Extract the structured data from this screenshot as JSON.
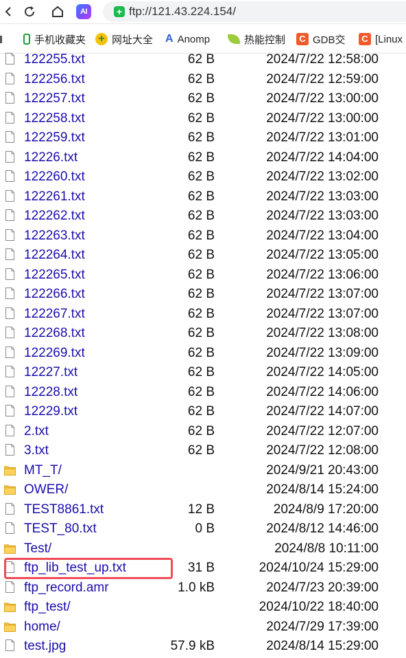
{
  "browser": {
    "ai_label": "AI",
    "address_url": "ftp://121.43.224.154/"
  },
  "bookmarks": [
    {
      "label": "手机收藏夹",
      "icon": "phone-icon"
    },
    {
      "label": "网址大全",
      "icon": "globe-icon"
    },
    {
      "label": "Anomp",
      "icon": "a-logo-icon"
    },
    {
      "label": "热能控制",
      "icon": "leaf-icon"
    },
    {
      "label": "GDB交",
      "icon": "c-logo-icon"
    },
    {
      "label": "[Linux",
      "icon": "c-logo-icon"
    }
  ],
  "files": [
    {
      "name": "122255.txt",
      "size": "62 B",
      "date": "2024/7/22 12:58:00",
      "type": "file"
    },
    {
      "name": "122256.txt",
      "size": "62 B",
      "date": "2024/7/22 12:59:00",
      "type": "file"
    },
    {
      "name": "122257.txt",
      "size": "62 B",
      "date": "2024/7/22 13:00:00",
      "type": "file"
    },
    {
      "name": "122258.txt",
      "size": "62 B",
      "date": "2024/7/22 13:00:00",
      "type": "file"
    },
    {
      "name": "122259.txt",
      "size": "62 B",
      "date": "2024/7/22 13:01:00",
      "type": "file"
    },
    {
      "name": "12226.txt",
      "size": "62 B",
      "date": "2024/7/22 14:04:00",
      "type": "file"
    },
    {
      "name": "122260.txt",
      "size": "62 B",
      "date": "2024/7/22 13:02:00",
      "type": "file"
    },
    {
      "name": "122261.txt",
      "size": "62 B",
      "date": "2024/7/22 13:03:00",
      "type": "file"
    },
    {
      "name": "122262.txt",
      "size": "62 B",
      "date": "2024/7/22 13:03:00",
      "type": "file"
    },
    {
      "name": "122263.txt",
      "size": "62 B",
      "date": "2024/7/22 13:04:00",
      "type": "file"
    },
    {
      "name": "122264.txt",
      "size": "62 B",
      "date": "2024/7/22 13:05:00",
      "type": "file"
    },
    {
      "name": "122265.txt",
      "size": "62 B",
      "date": "2024/7/22 13:06:00",
      "type": "file"
    },
    {
      "name": "122266.txt",
      "size": "62 B",
      "date": "2024/7/22 13:07:00",
      "type": "file"
    },
    {
      "name": "122267.txt",
      "size": "62 B",
      "date": "2024/7/22 13:07:00",
      "type": "file"
    },
    {
      "name": "122268.txt",
      "size": "62 B",
      "date": "2024/7/22 13:08:00",
      "type": "file"
    },
    {
      "name": "122269.txt",
      "size": "62 B",
      "date": "2024/7/22 13:09:00",
      "type": "file"
    },
    {
      "name": "12227.txt",
      "size": "62 B",
      "date": "2024/7/22 14:05:00",
      "type": "file"
    },
    {
      "name": "12228.txt",
      "size": "62 B",
      "date": "2024/7/22 14:06:00",
      "type": "file"
    },
    {
      "name": "12229.txt",
      "size": "62 B",
      "date": "2024/7/22 14:07:00",
      "type": "file"
    },
    {
      "name": "2.txt",
      "size": "62 B",
      "date": "2024/7/22 12:07:00",
      "type": "file"
    },
    {
      "name": "3.txt",
      "size": "62 B",
      "date": "2024/7/22 12:08:00",
      "type": "file"
    },
    {
      "name": "MT_T/",
      "size": "",
      "date": "2024/9/21 20:43:00",
      "type": "folder"
    },
    {
      "name": "OWER/",
      "size": "",
      "date": "2024/8/14 15:24:00",
      "type": "folder"
    },
    {
      "name": "TEST8861.txt",
      "size": "12 B",
      "date": "2024/8/9 17:20:00",
      "type": "file"
    },
    {
      "name": "TEST_80.txt",
      "size": "0 B",
      "date": "2024/8/12 14:46:00",
      "type": "file"
    },
    {
      "name": "Test/",
      "size": "",
      "date": "2024/8/8 10:11:00",
      "type": "folder"
    },
    {
      "name": "ftp_lib_test_up.txt",
      "size": "31 B",
      "date": "2024/10/24 15:29:00",
      "type": "file"
    },
    {
      "name": "ftp_record.amr",
      "size": "1.0 kB",
      "date": "2024/7/23 20:39:00",
      "type": "file"
    },
    {
      "name": "ftp_test/",
      "size": "",
      "date": "2024/10/22 18:40:00",
      "type": "folder"
    },
    {
      "name": "home/",
      "size": "",
      "date": "2024/7/29 17:39:00",
      "type": "folder"
    },
    {
      "name": "test.jpg",
      "size": "57.9 kB",
      "date": "2024/8/14 15:29:00",
      "type": "file"
    }
  ],
  "colors": {
    "link": "#1a0dab",
    "highlight_box": "#ef4b57",
    "folder": "#f6c342"
  }
}
